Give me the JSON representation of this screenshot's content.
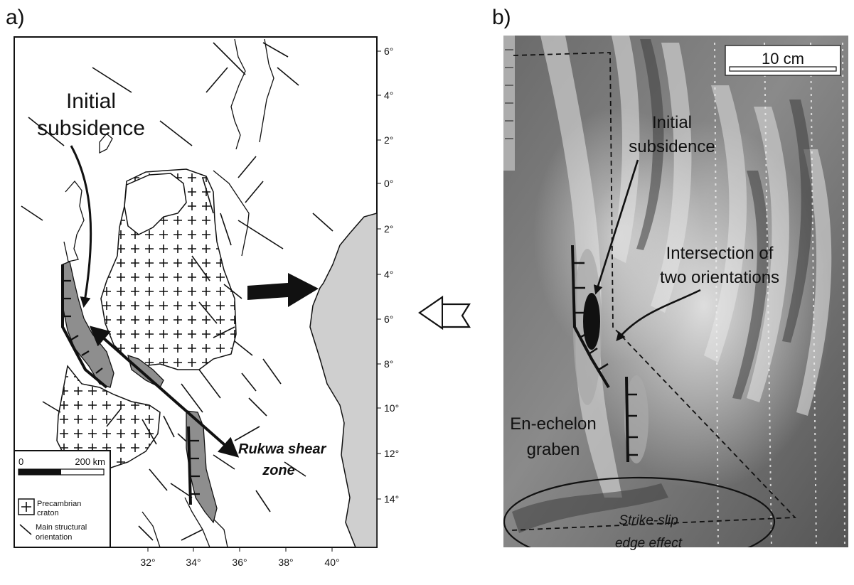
{
  "panel_a": {
    "label": "a)",
    "lat_ticks": [
      "6°",
      "4°",
      "2°",
      "0°",
      "2°",
      "4°",
      "6°",
      "8°",
      "10°",
      "12°",
      "14°"
    ],
    "lon_ticks": [
      "32°",
      "34°",
      "36°",
      "38°",
      "40°"
    ],
    "annotations": {
      "initial_subsidence": [
        "Initial",
        "subsidence"
      ],
      "rukwa_shear_zone": [
        "Rukwa shear",
        "zone"
      ]
    },
    "legend": {
      "scale_start": "0",
      "scale_end": "200 km",
      "craton": [
        "Precambrian",
        "craton"
      ],
      "structural": [
        "Main structural",
        "orientation"
      ]
    },
    "colors": {
      "basin": "#8e8e8e",
      "ocean": "#cfcfcf",
      "line": "#111111"
    }
  },
  "panel_b": {
    "label": "b)",
    "scale_bar": "10 cm",
    "annotations": {
      "initial_subsidence": [
        "Initial",
        "subsidence"
      ],
      "intersection": [
        "Intersection of",
        "two orientations"
      ],
      "graben": [
        "En-echelon",
        "graben"
      ],
      "edge_effect": [
        "Strike-slip",
        "edge effect"
      ]
    },
    "colors": {
      "photo_dark": "#5b5b5b",
      "photo_light": "#d8d8d8"
    }
  },
  "extension_arrow_icon": "open-arrow-left-icon"
}
